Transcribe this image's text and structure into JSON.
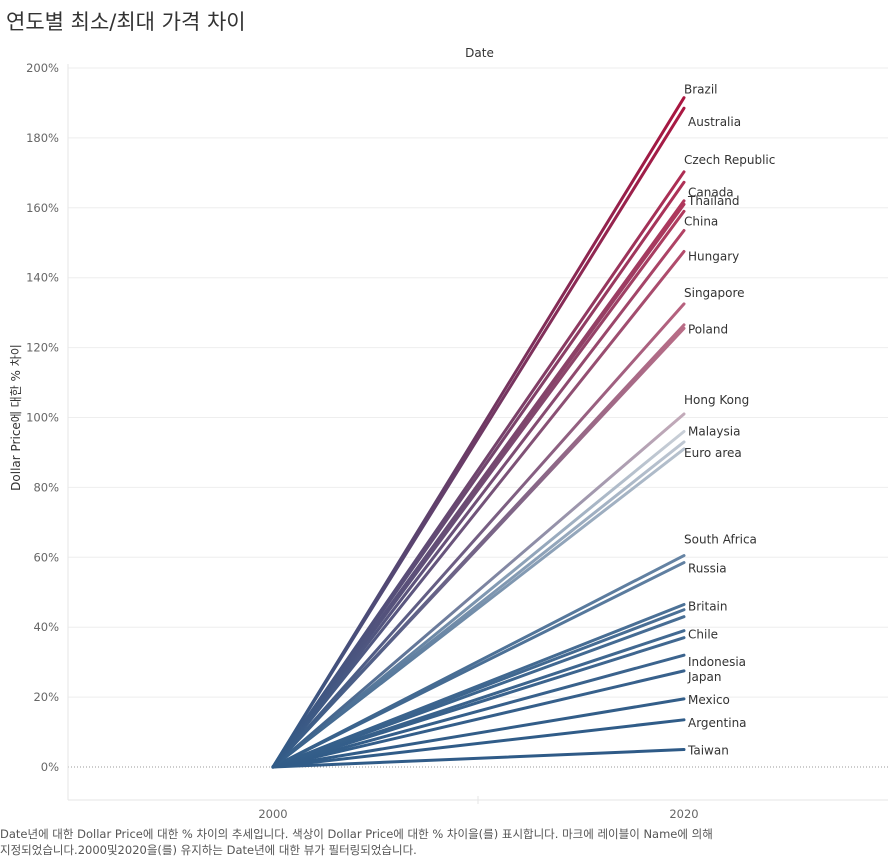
{
  "title": "연도별 최소/최대 가격 차이",
  "footer": {
    "line1": "Date년에 대한 Dollar Price에 대한 % 차이의 추세입니다. 색상이 Dollar Price에 대한 % 차이을(를) 표시합니다. 마크에 레이블이 Name에 의해",
    "line2": "지정되었습니다.2000및2020을(를) 유지하는 Date년에 대한 뷰가 필터링되었습니다."
  },
  "chart_data": {
    "type": "line",
    "column_header": "Date",
    "ylabel": "Dollar Price에 대한 % 차이",
    "x": [
      "2000",
      "2020"
    ],
    "ylim": [
      -10,
      200
    ],
    "yticks": [
      0,
      20,
      40,
      60,
      80,
      100,
      120,
      140,
      160,
      180,
      200
    ],
    "ytick_labels": [
      "0%",
      "20%",
      "40%",
      "60%",
      "80%",
      "100%",
      "120%",
      "140%",
      "160%",
      "180%",
      "200%"
    ],
    "grid": true,
    "color_scale": {
      "low": "#2e5a87",
      "mid": "#c9cfd7",
      "high": "#a90c38"
    },
    "series": [
      {
        "name": "Brazil",
        "values": [
          0,
          191.5
        ],
        "labeled": true
      },
      {
        "name": "Australia",
        "values": [
          0,
          188.5
        ],
        "labeled": true
      },
      {
        "name": "Czech Republic",
        "values": [
          0,
          170.3
        ],
        "labeled": true
      },
      {
        "name": "Canada",
        "values": [
          0,
          167.3
        ],
        "labeled": true
      },
      {
        "name": "Thailand",
        "values": [
          0,
          162.0
        ],
        "labeled": true
      },
      {
        "name": "",
        "values": [
          0,
          161.0
        ],
        "labeled": false
      },
      {
        "name": "China",
        "values": [
          0,
          159.0
        ],
        "labeled": true
      },
      {
        "name": "",
        "values": [
          0,
          153.5
        ],
        "labeled": false
      },
      {
        "name": "Hungary",
        "values": [
          0,
          147.5
        ],
        "labeled": true
      },
      {
        "name": "Singapore",
        "values": [
          0,
          132.5
        ],
        "labeled": true
      },
      {
        "name": "",
        "values": [
          0,
          126.5
        ],
        "labeled": false
      },
      {
        "name": "Poland",
        "values": [
          0,
          125.5
        ],
        "labeled": true
      },
      {
        "name": "Hong Kong",
        "values": [
          0,
          101.0
        ],
        "labeled": true
      },
      {
        "name": "Malaysia",
        "values": [
          0,
          96.0
        ],
        "labeled": true
      },
      {
        "name": "",
        "values": [
          0,
          93.0
        ],
        "labeled": false
      },
      {
        "name": "Euro area",
        "values": [
          0,
          91.0
        ],
        "labeled": true
      },
      {
        "name": "South Africa",
        "values": [
          0,
          60.5
        ],
        "labeled": true
      },
      {
        "name": "Russia",
        "values": [
          0,
          58.5
        ],
        "labeled": true
      },
      {
        "name": "Britain",
        "values": [
          0,
          46.5
        ],
        "labeled": true
      },
      {
        "name": "",
        "values": [
          0,
          45.0
        ],
        "labeled": false
      },
      {
        "name": "",
        "values": [
          0,
          43.0
        ],
        "labeled": false
      },
      {
        "name": "Chile",
        "values": [
          0,
          39.0
        ],
        "labeled": true
      },
      {
        "name": "",
        "values": [
          0,
          37.0
        ],
        "labeled": false
      },
      {
        "name": "Indonesia",
        "values": [
          0,
          32.0
        ],
        "labeled": true
      },
      {
        "name": "Japan",
        "values": [
          0,
          27.5
        ],
        "labeled": true
      },
      {
        "name": "Mexico",
        "values": [
          0,
          19.5
        ],
        "labeled": true
      },
      {
        "name": "Argentina",
        "values": [
          0,
          13.5
        ],
        "labeled": true
      },
      {
        "name": "Taiwan",
        "values": [
          0,
          5.0
        ],
        "labeled": true
      }
    ]
  }
}
